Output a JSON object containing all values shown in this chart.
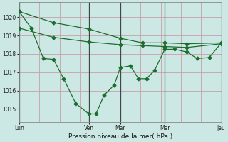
{
  "xlabel": "Pression niveau de la mer( hPa )",
  "bg_color": "#cce8e4",
  "line_color": "#1a6e2e",
  "grid_color": "#c8a0a8",
  "ylim": [
    1014.3,
    1020.8
  ],
  "yticks": [
    1015,
    1016,
    1017,
    1018,
    1019,
    1020
  ],
  "xlim": [
    0,
    1.0
  ],
  "xtick_positions": [
    0.0,
    0.345,
    0.5,
    0.72,
    1.0
  ],
  "xtick_labels": [
    "Lun",
    "Ven",
    "Mar",
    "Mer",
    "Jeu"
  ],
  "vline_positions": [
    0.0,
    0.345,
    0.5,
    0.72,
    1.0
  ],
  "hgrid_positions": [
    1015,
    1016,
    1017,
    1018,
    1019,
    1020
  ],
  "vgrid_positions": [
    0.0,
    0.1,
    0.2,
    0.3,
    0.345,
    0.4,
    0.5,
    0.6,
    0.7,
    0.72,
    0.8,
    0.9,
    1.0
  ],
  "line1_x": [
    0.0,
    0.17,
    0.345,
    0.5,
    0.61,
    0.72,
    0.83,
    1.0
  ],
  "line1_y": [
    1020.3,
    1019.7,
    1019.35,
    1018.85,
    1018.6,
    1018.6,
    1018.55,
    1018.6
  ],
  "line2_x": [
    0.0,
    0.17,
    0.345,
    0.5,
    0.61,
    0.72,
    0.83,
    1.0
  ],
  "line2_y": [
    1019.4,
    1018.9,
    1018.65,
    1018.5,
    1018.45,
    1018.4,
    1018.35,
    1018.55
  ],
  "line3_x": [
    0.0,
    0.06,
    0.12,
    0.17,
    0.22,
    0.28,
    0.345,
    0.38,
    0.42,
    0.47,
    0.5,
    0.55,
    0.59,
    0.63,
    0.67,
    0.72,
    0.77,
    0.83,
    0.88,
    0.94,
    1.0
  ],
  "line3_y": [
    1020.3,
    1019.4,
    1017.75,
    1017.7,
    1016.65,
    1015.3,
    1014.73,
    1014.73,
    1015.75,
    1016.3,
    1017.25,
    1017.35,
    1016.65,
    1016.65,
    1017.1,
    1018.25,
    1018.25,
    1018.1,
    1017.75,
    1017.8,
    1018.6
  ]
}
